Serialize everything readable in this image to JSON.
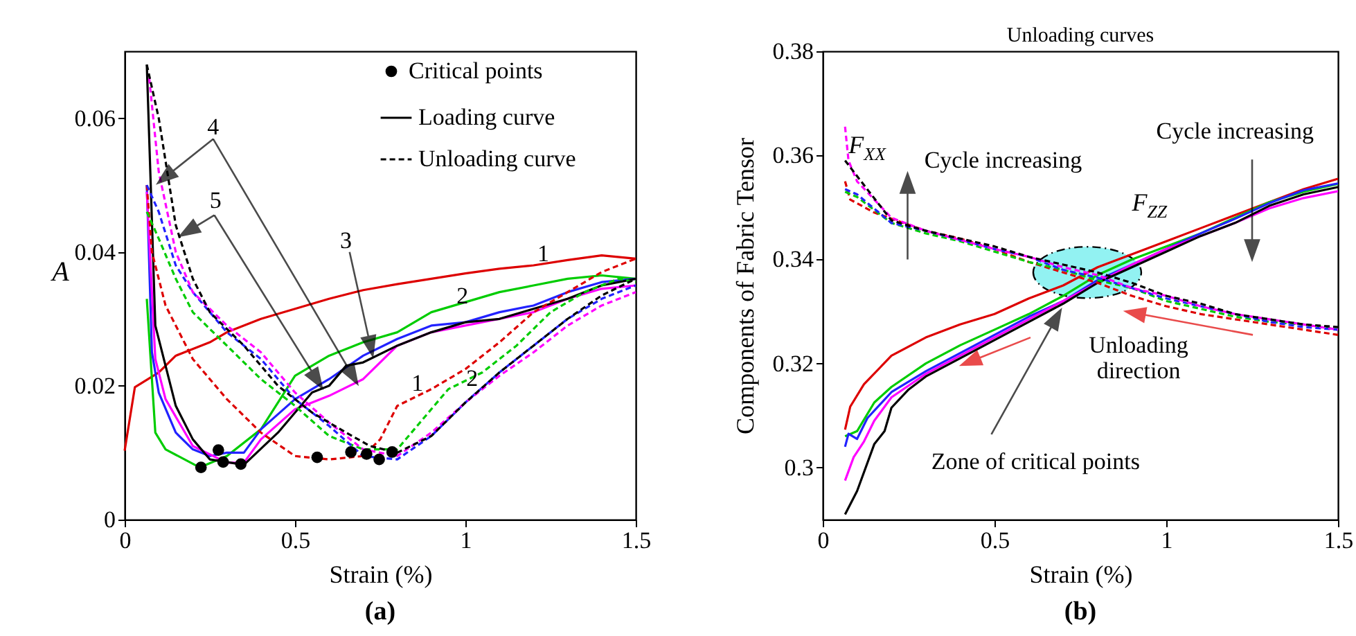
{
  "chart_data": [
    {
      "type": "line",
      "xlabel": "Strain (%)",
      "ylabel": "A",
      "xlim": [
        0,
        1.5
      ],
      "xticks": [
        0,
        0.5,
        1,
        1.5
      ],
      "ylim": [
        0,
        0.07
      ],
      "yticks": [
        0,
        0.02,
        0.04,
        0.06
      ],
      "legend": "top right",
      "series": [
        {
          "color": "#dd0000",
          "line_style": "solid",
          "x": [
            0,
            0.03,
            0.1,
            0.15,
            0.25,
            0.3,
            0.4,
            0.5,
            0.6,
            0.7,
            0.8,
            0.9,
            1.0,
            1.1,
            1.2,
            1.3,
            1.4,
            1.5
          ],
          "values": [
            0.0103,
            0.0198,
            0.022,
            0.0245,
            0.0265,
            0.028,
            0.03,
            0.0315,
            0.033,
            0.0343,
            0.0352,
            0.036,
            0.0368,
            0.0375,
            0.038,
            0.0388,
            0.0395,
            0.039
          ]
        },
        {
          "color": "#00cc00",
          "line_style": "solid",
          "x": [
            0.065,
            0.09,
            0.12,
            0.22,
            0.3,
            0.4,
            0.5,
            0.6,
            0.7,
            0.8,
            0.9,
            1.0,
            1.1,
            1.2,
            1.3,
            1.4,
            1.5
          ],
          "values": [
            0.033,
            0.013,
            0.0105,
            0.0078,
            0.0095,
            0.0135,
            0.0215,
            0.0245,
            0.0265,
            0.028,
            0.031,
            0.0325,
            0.034,
            0.035,
            0.036,
            0.0365,
            0.036
          ]
        },
        {
          "color": "#2222ff",
          "line_style": "solid",
          "x": [
            0.065,
            0.08,
            0.1,
            0.15,
            0.2,
            0.25,
            0.3,
            0.35,
            0.4,
            0.5,
            0.6,
            0.7,
            0.8,
            0.9,
            1.0,
            1.1,
            1.2,
            1.3,
            1.4,
            1.5
          ],
          "values": [
            0.05,
            0.025,
            0.019,
            0.013,
            0.0105,
            0.0095,
            0.01,
            0.01,
            0.0135,
            0.018,
            0.021,
            0.0245,
            0.027,
            0.029,
            0.0295,
            0.031,
            0.032,
            0.034,
            0.0355,
            0.036
          ]
        },
        {
          "color": "#ff00ff",
          "line_style": "solid",
          "x": [
            0.065,
            0.09,
            0.12,
            0.2,
            0.3,
            0.35,
            0.4,
            0.5,
            0.6,
            0.7,
            0.8,
            0.9,
            1.0,
            1.1,
            1.2,
            1.3,
            1.4,
            1.5
          ],
          "values": [
            0.049,
            0.024,
            0.018,
            0.011,
            0.0085,
            0.0085,
            0.012,
            0.0165,
            0.0185,
            0.021,
            0.026,
            0.028,
            0.029,
            0.03,
            0.031,
            0.033,
            0.0345,
            0.035
          ]
        },
        {
          "name": "Loading curve",
          "color": "#000000",
          "line_style": "solid",
          "x": [
            0.065,
            0.09,
            0.12,
            0.15,
            0.2,
            0.25,
            0.35,
            0.45,
            0.55,
            0.6,
            0.65,
            0.7,
            0.8,
            0.9,
            1.0,
            1.1,
            1.2,
            1.3,
            1.4,
            1.5
          ],
          "values": [
            0.068,
            0.029,
            0.023,
            0.017,
            0.012,
            0.009,
            0.0082,
            0.013,
            0.019,
            0.02,
            0.023,
            0.0235,
            0.026,
            0.028,
            0.0295,
            0.03,
            0.0315,
            0.033,
            0.035,
            0.036
          ]
        },
        {
          "color": "#dd0000",
          "line_style": "dashed",
          "x": [
            0.065,
            0.08,
            0.12,
            0.2,
            0.3,
            0.4,
            0.5,
            0.6,
            0.7,
            0.75,
            0.8,
            0.9,
            1.0,
            1.1,
            1.2,
            1.3,
            1.4,
            1.5
          ],
          "values": [
            0.05,
            0.04,
            0.032,
            0.024,
            0.018,
            0.013,
            0.0095,
            0.009,
            0.0095,
            0.012,
            0.017,
            0.0195,
            0.0225,
            0.0265,
            0.031,
            0.034,
            0.037,
            0.039
          ]
        },
        {
          "color": "#00cc00",
          "line_style": "dashed",
          "x": [
            0.065,
            0.1,
            0.15,
            0.2,
            0.3,
            0.4,
            0.5,
            0.6,
            0.7,
            0.8,
            0.85,
            0.95,
            1.05,
            1.15,
            1.25,
            1.35,
            1.45,
            1.5
          ],
          "values": [
            0.046,
            0.042,
            0.036,
            0.031,
            0.026,
            0.021,
            0.017,
            0.0125,
            0.0105,
            0.0105,
            0.0135,
            0.0195,
            0.022,
            0.026,
            0.031,
            0.034,
            0.036,
            0.0355
          ]
        },
        {
          "color": "#2222ff",
          "line_style": "dashed",
          "x": [
            0.065,
            0.1,
            0.15,
            0.2,
            0.3,
            0.4,
            0.5,
            0.6,
            0.7,
            0.8,
            0.9,
            1.0,
            1.1,
            1.2,
            1.3,
            1.4,
            1.5
          ],
          "values": [
            0.05,
            0.046,
            0.038,
            0.034,
            0.028,
            0.024,
            0.018,
            0.014,
            0.0095,
            0.009,
            0.0125,
            0.0175,
            0.022,
            0.026,
            0.03,
            0.033,
            0.035
          ]
        },
        {
          "color": "#ff00ff",
          "line_style": "dashed",
          "x": [
            0.072,
            0.1,
            0.15,
            0.2,
            0.3,
            0.4,
            0.5,
            0.6,
            0.7,
            0.8,
            0.9,
            1.0,
            1.1,
            1.2,
            1.3,
            1.4,
            1.5
          ],
          "values": [
            0.066,
            0.052,
            0.04,
            0.034,
            0.029,
            0.025,
            0.019,
            0.0145,
            0.0105,
            0.0095,
            0.013,
            0.0175,
            0.0215,
            0.025,
            0.029,
            0.032,
            0.034
          ]
        },
        {
          "name": "Unloading curve",
          "color": "#000000",
          "line_style": "dashed",
          "x": [
            0.065,
            0.1,
            0.15,
            0.2,
            0.25,
            0.35,
            0.45,
            0.55,
            0.65,
            0.72,
            0.8,
            0.9,
            1.0,
            1.1,
            1.2,
            1.3,
            1.4,
            1.5
          ],
          "values": [
            0.068,
            0.06,
            0.044,
            0.036,
            0.031,
            0.026,
            0.02,
            0.016,
            0.013,
            0.011,
            0.01,
            0.0125,
            0.0175,
            0.022,
            0.026,
            0.03,
            0.0335,
            0.036
          ]
        },
        {
          "name": "Critical points",
          "type": "scatter",
          "marker": "circle",
          "color": "#000000",
          "x": [
            0.224,
            0.275,
            0.289,
            0.341,
            0.565,
            0.664,
            0.71,
            0.747,
            0.785
          ],
          "values": [
            0.0078,
            0.0104,
            0.0086,
            0.0083,
            0.0093,
            0.0101,
            0.0098,
            0.009,
            0.0101
          ]
        }
      ],
      "annotations": [
        "4",
        "5",
        "3",
        "1",
        "2",
        "1",
        "2",
        "(a)"
      ]
    },
    {
      "type": "line",
      "title": "Unloading curves",
      "xlabel": "Strain (%)",
      "ylabel": "Components of Fabric Tensor",
      "xlim": [
        0,
        1.5
      ],
      "xticks": [
        0,
        0.5,
        1,
        1.5
      ],
      "ylim": [
        0.29,
        0.38
      ],
      "yticks": [
        0.3,
        0.32,
        0.34,
        0.36,
        0.38
      ],
      "series": [
        {
          "color": "#dd0000",
          "line_style": "solid",
          "x": [
            0.065,
            0.08,
            0.12,
            0.2,
            0.3,
            0.4,
            0.5,
            0.6,
            0.7,
            0.8,
            0.9,
            1.0,
            1.1,
            1.2,
            1.3,
            1.4,
            1.5
          ],
          "values": [
            0.3073,
            0.3117,
            0.316,
            0.3215,
            0.325,
            0.3275,
            0.3295,
            0.3325,
            0.335,
            0.3385,
            0.341,
            0.3435,
            0.346,
            0.3485,
            0.351,
            0.3535,
            0.3555
          ]
        },
        {
          "color": "#00cc00",
          "line_style": "solid",
          "x": [
            0.065,
            0.1,
            0.15,
            0.2,
            0.3,
            0.4,
            0.5,
            0.6,
            0.7,
            0.8,
            0.9,
            1.0,
            1.1,
            1.2,
            1.3,
            1.4,
            1.5
          ],
          "values": [
            0.306,
            0.307,
            0.3125,
            0.3155,
            0.32,
            0.3235,
            0.3265,
            0.3295,
            0.333,
            0.337,
            0.34,
            0.3425,
            0.345,
            0.348,
            0.351,
            0.353,
            0.3545
          ]
        },
        {
          "color": "#2222ff",
          "line_style": "solid",
          "x": [
            0.065,
            0.075,
            0.1,
            0.13,
            0.2,
            0.3,
            0.4,
            0.5,
            0.6,
            0.7,
            0.8,
            0.9,
            1.0,
            1.1,
            1.2,
            1.3,
            1.4,
            1.5
          ],
          "values": [
            0.304,
            0.3065,
            0.3055,
            0.3095,
            0.3145,
            0.3185,
            0.322,
            0.3255,
            0.329,
            0.332,
            0.336,
            0.339,
            0.342,
            0.345,
            0.3478,
            0.3508,
            0.3533,
            0.3546
          ]
        },
        {
          "color": "#ff00ff",
          "line_style": "solid",
          "x": [
            0.065,
            0.09,
            0.12,
            0.15,
            0.2,
            0.3,
            0.4,
            0.5,
            0.6,
            0.7,
            0.8,
            0.9,
            1.0,
            1.1,
            1.2,
            1.3,
            1.4,
            1.5
          ],
          "values": [
            0.2975,
            0.302,
            0.305,
            0.309,
            0.3135,
            0.318,
            0.3215,
            0.325,
            0.3285,
            0.332,
            0.3355,
            0.339,
            0.342,
            0.3445,
            0.347,
            0.3498,
            0.3518,
            0.3531
          ]
        },
        {
          "color": "#000000",
          "line_style": "solid",
          "x": [
            0.065,
            0.1,
            0.15,
            0.18,
            0.2,
            0.25,
            0.3,
            0.4,
            0.5,
            0.6,
            0.7,
            0.8,
            0.9,
            1.0,
            1.1,
            1.2,
            1.3,
            1.4,
            1.5
          ],
          "values": [
            0.291,
            0.2955,
            0.3045,
            0.307,
            0.3115,
            0.315,
            0.3175,
            0.321,
            0.3245,
            0.328,
            0.3315,
            0.3355,
            0.3385,
            0.3415,
            0.3445,
            0.347,
            0.3503,
            0.3525,
            0.3539
          ]
        },
        {
          "color": "#dd0000",
          "line_style": "dashed",
          "x": [
            0.065,
            0.08,
            0.15,
            0.3,
            0.4,
            0.5,
            0.6,
            0.7,
            0.8,
            0.9,
            1.0,
            1.1,
            1.2,
            1.3,
            1.4,
            1.5
          ],
          "values": [
            0.355,
            0.3515,
            0.349,
            0.3455,
            0.344,
            0.342,
            0.3395,
            0.3375,
            0.3355,
            0.333,
            0.331,
            0.3295,
            0.3285,
            0.3275,
            0.3265,
            0.3255
          ]
        },
        {
          "color": "#00cc00",
          "line_style": "dashed",
          "x": [
            0.065,
            0.1,
            0.2,
            0.3,
            0.4,
            0.5,
            0.6,
            0.7,
            0.8,
            0.9,
            1.0,
            1.1,
            1.2,
            1.3,
            1.4,
            1.5
          ],
          "values": [
            0.353,
            0.352,
            0.347,
            0.345,
            0.3435,
            0.3415,
            0.3395,
            0.338,
            0.336,
            0.3345,
            0.332,
            0.3305,
            0.329,
            0.328,
            0.3275,
            0.3265
          ]
        },
        {
          "color": "#2222ff",
          "line_style": "dashed",
          "x": [
            0.065,
            0.1,
            0.2,
            0.3,
            0.5,
            0.6,
            0.7,
            0.8,
            0.9,
            1.0,
            1.1,
            1.2,
            1.3,
            1.4,
            1.5
          ],
          "values": [
            0.3535,
            0.3525,
            0.347,
            0.3455,
            0.342,
            0.3405,
            0.338,
            0.3365,
            0.3345,
            0.3325,
            0.331,
            0.3295,
            0.328,
            0.327,
            0.3265
          ]
        },
        {
          "color": "#ff00ff",
          "line_style": "dashed",
          "x": [
            0.065,
            0.075,
            0.1,
            0.2,
            0.3,
            0.5,
            0.6,
            0.7,
            0.8,
            0.9,
            1.0,
            1.1,
            1.2,
            1.3,
            1.4,
            1.5
          ],
          "values": [
            0.3655,
            0.359,
            0.355,
            0.348,
            0.3455,
            0.342,
            0.3405,
            0.3385,
            0.337,
            0.3345,
            0.333,
            0.331,
            0.3295,
            0.3285,
            0.3275,
            0.3265
          ]
        },
        {
          "color": "#000000",
          "line_style": "dashed",
          "x": [
            0.065,
            0.1,
            0.2,
            0.3,
            0.5,
            0.6,
            0.7,
            0.8,
            0.9,
            1.0,
            1.1,
            1.2,
            1.3,
            1.4,
            1.5
          ],
          "values": [
            0.359,
            0.356,
            0.3475,
            0.3455,
            0.3425,
            0.3405,
            0.339,
            0.3375,
            0.3355,
            0.333,
            0.3315,
            0.3295,
            0.3285,
            0.3275,
            0.327
          ]
        }
      ],
      "annotations": [
        "F$_{XX}$",
        "F$_{ZZ}$",
        "Cycle increasing",
        "Cycle increasing",
        "Unloading",
        "direction",
        "Zone of critical points",
        "(b)"
      ]
    }
  ]
}
